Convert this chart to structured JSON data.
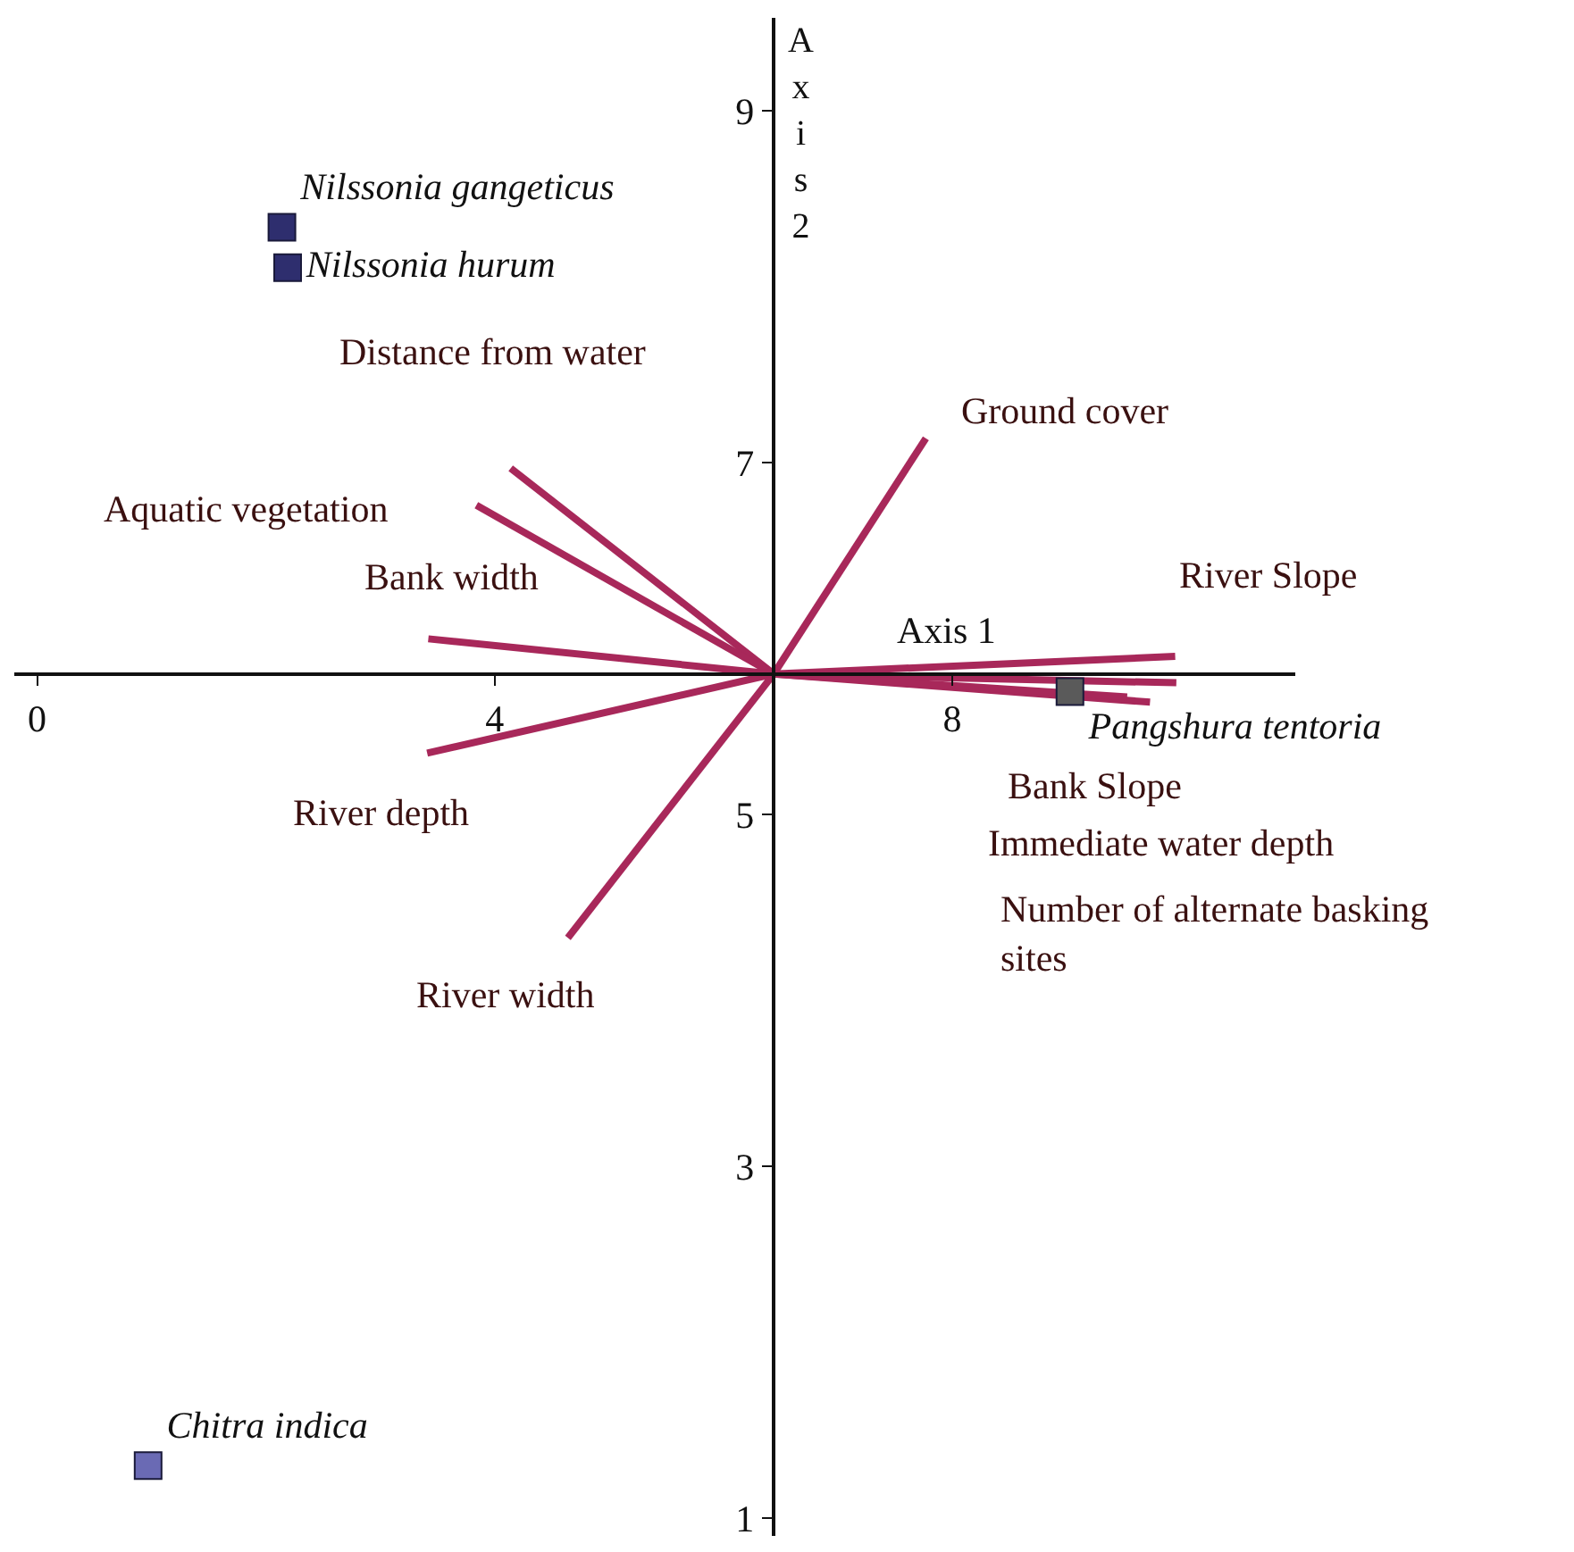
{
  "chart_data": {
    "type": "scatter",
    "xlabel": "Axis 1",
    "ylabel": "Axis 2",
    "xlim": [
      -0.2,
      11.0
    ],
    "ylim": [
      0.9,
      9.53
    ],
    "xticks": [
      0,
      4,
      8
    ],
    "yticks": [
      1,
      3,
      5,
      7,
      9
    ],
    "marker": "square",
    "series": [
      {
        "name": "Nilssonia gangeticus",
        "color": "#2e2e6e",
        "x": [
          2.14
        ],
        "values": [
          8.34
        ]
      },
      {
        "name": "Nilssonia hurum",
        "color": "#2e2e6e",
        "x": [
          2.19
        ],
        "values": [
          8.11
        ]
      },
      {
        "name": "Chitra indica",
        "color": "#6a6ab4",
        "x": [
          0.97
        ],
        "values": [
          1.3
        ]
      },
      {
        "name": "Pangshura tentoria",
        "color": "#5a5a5a",
        "x": [
          9.03
        ],
        "values": [
          5.7
        ]
      },
      {
        "type": "line",
        "marker": "none",
        "color": "#a8285a",
        "x": [
          6.44,
          4.14,
          null,
          6.44,
          3.84,
          null,
          6.44,
          3.42,
          null,
          6.44,
          3.41,
          null,
          6.44,
          4.64,
          null,
          6.44,
          7.77,
          null,
          6.44,
          9.95,
          null,
          6.44,
          9.96,
          null,
          6.44,
          9.73,
          null,
          6.44,
          9.53
        ],
        "values": [
          5.8,
          6.97,
          null,
          5.8,
          6.76,
          null,
          5.8,
          6.0,
          null,
          5.8,
          5.35,
          null,
          5.8,
          4.3,
          null,
          5.8,
          7.14,
          null,
          5.8,
          5.9,
          null,
          5.8,
          5.75,
          null,
          5.8,
          5.64,
          null,
          5.8,
          5.67
        ]
      }
    ],
    "annotations": [
      "Distance from water",
      "Aquatic vegetation",
      "Bank width",
      "River depth",
      "River width",
      "Ground cover",
      "River Slope",
      "Bank Slope",
      "Immediate water depth",
      "Number of alternate basking\nsites"
    ]
  }
}
